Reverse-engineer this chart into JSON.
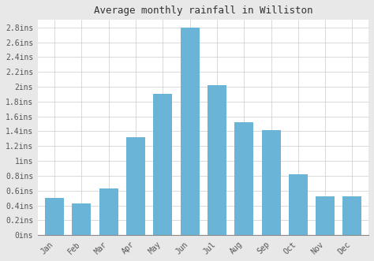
{
  "title": "Average monthly rainfall in Williston",
  "months": [
    "Jan",
    "Feb",
    "Mar",
    "Apr",
    "May",
    "Jun",
    "Jul",
    "Aug",
    "Sep",
    "Oct",
    "Nov",
    "Dec"
  ],
  "values": [
    0.5,
    0.43,
    0.63,
    1.32,
    1.9,
    2.8,
    2.02,
    1.52,
    1.42,
    0.82,
    0.52,
    0.52
  ],
  "bar_color": "#6ab4d8",
  "background_color": "#e8e8e8",
  "plot_bg_color": "#ffffff",
  "grid_color": "#cccccc",
  "title_fontsize": 9,
  "tick_fontsize": 7,
  "ylim": [
    0,
    2.9
  ],
  "ytick_values": [
    0,
    0.2,
    0.4,
    0.6,
    0.8,
    1.0,
    1.2,
    1.4,
    1.6,
    1.8,
    2.0,
    2.2,
    2.4,
    2.6,
    2.8
  ],
  "ytick_labels": [
    "0ins",
    "0.2ins",
    "0.4ins",
    "0.6ins",
    "0.8ins",
    "1ins",
    "1.2ins",
    "1.4ins",
    "1.6ins",
    "1.8ins",
    "2ins",
    "2.2ins",
    "2.4ins",
    "2.6ins",
    "2.8ins"
  ]
}
